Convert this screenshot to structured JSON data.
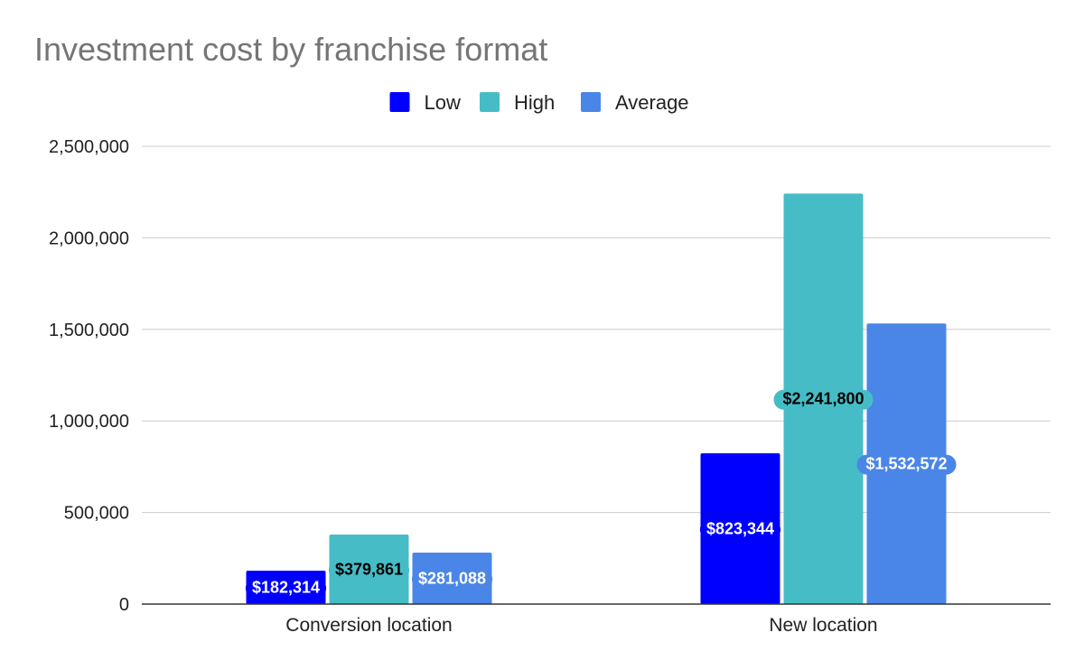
{
  "chart_data": {
    "type": "bar",
    "title": "Investment cost by franchise format",
    "categories": [
      "Conversion location",
      "New location"
    ],
    "series": [
      {
        "name": "Low",
        "color": "#0000ff",
        "values": [
          182314,
          823344
        ],
        "labels": [
          "$182,314",
          "$823,344"
        ],
        "label_color": "#ffffff"
      },
      {
        "name": "High",
        "color": "#46bdc6",
        "values": [
          379861,
          2241800
        ],
        "labels": [
          "$379,861",
          "$2,241,800"
        ],
        "label_color": "#000000"
      },
      {
        "name": "Average",
        "color": "#4a86e8",
        "values": [
          281088,
          1532572
        ],
        "labels": [
          "$281,088",
          "$1,532,572"
        ],
        "label_color": "#ffffff"
      }
    ],
    "ylim": [
      0,
      2500000
    ],
    "yticks": [
      0,
      500000,
      1000000,
      1500000,
      2000000,
      2500000
    ],
    "ytick_labels": [
      "0",
      "500,000",
      "1,000,000",
      "1,500,000",
      "2,000,000",
      "2,500,000"
    ],
    "xlabel": "",
    "ylabel": "",
    "grid": true,
    "legend_position": "top"
  }
}
